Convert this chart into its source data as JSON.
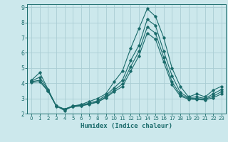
{
  "xlabel": "Humidex (Indice chaleur)",
  "xlim": [
    -0.5,
    23.5
  ],
  "ylim": [
    2,
    9.2
  ],
  "yticks": [
    2,
    3,
    4,
    5,
    6,
    7,
    8,
    9
  ],
  "xticks": [
    0,
    1,
    2,
    3,
    4,
    5,
    6,
    7,
    8,
    9,
    10,
    11,
    12,
    13,
    14,
    15,
    16,
    17,
    18,
    19,
    20,
    21,
    22,
    23
  ],
  "bg_color": "#cce8ec",
  "grid_color": "#aacdd4",
  "line_color": "#1a6b6b",
  "line1": [
    4.2,
    4.7,
    3.6,
    2.5,
    2.2,
    2.5,
    2.6,
    2.8,
    3.0,
    3.3,
    4.1,
    4.8,
    6.3,
    7.6,
    8.9,
    8.4,
    7.0,
    5.0,
    3.8,
    3.1,
    3.3,
    3.1,
    3.55,
    3.8
  ],
  "line2": [
    4.15,
    4.4,
    3.55,
    2.5,
    2.3,
    2.5,
    2.55,
    2.7,
    2.85,
    3.2,
    3.7,
    4.2,
    5.5,
    6.5,
    8.2,
    7.8,
    6.1,
    4.5,
    3.4,
    3.05,
    3.1,
    3.0,
    3.3,
    3.6
  ],
  "line3": [
    4.1,
    4.2,
    3.5,
    2.5,
    2.3,
    2.48,
    2.52,
    2.65,
    2.78,
    3.1,
    3.55,
    3.95,
    5.1,
    6.1,
    7.7,
    7.3,
    5.7,
    4.1,
    3.25,
    3.0,
    3.0,
    2.95,
    3.15,
    3.45
  ],
  "line4": [
    4.05,
    4.1,
    3.48,
    2.48,
    2.28,
    2.45,
    2.5,
    2.62,
    2.75,
    3.05,
    3.45,
    3.78,
    4.8,
    5.8,
    7.3,
    6.9,
    5.4,
    3.9,
    3.15,
    2.95,
    2.92,
    2.9,
    3.05,
    3.3
  ]
}
